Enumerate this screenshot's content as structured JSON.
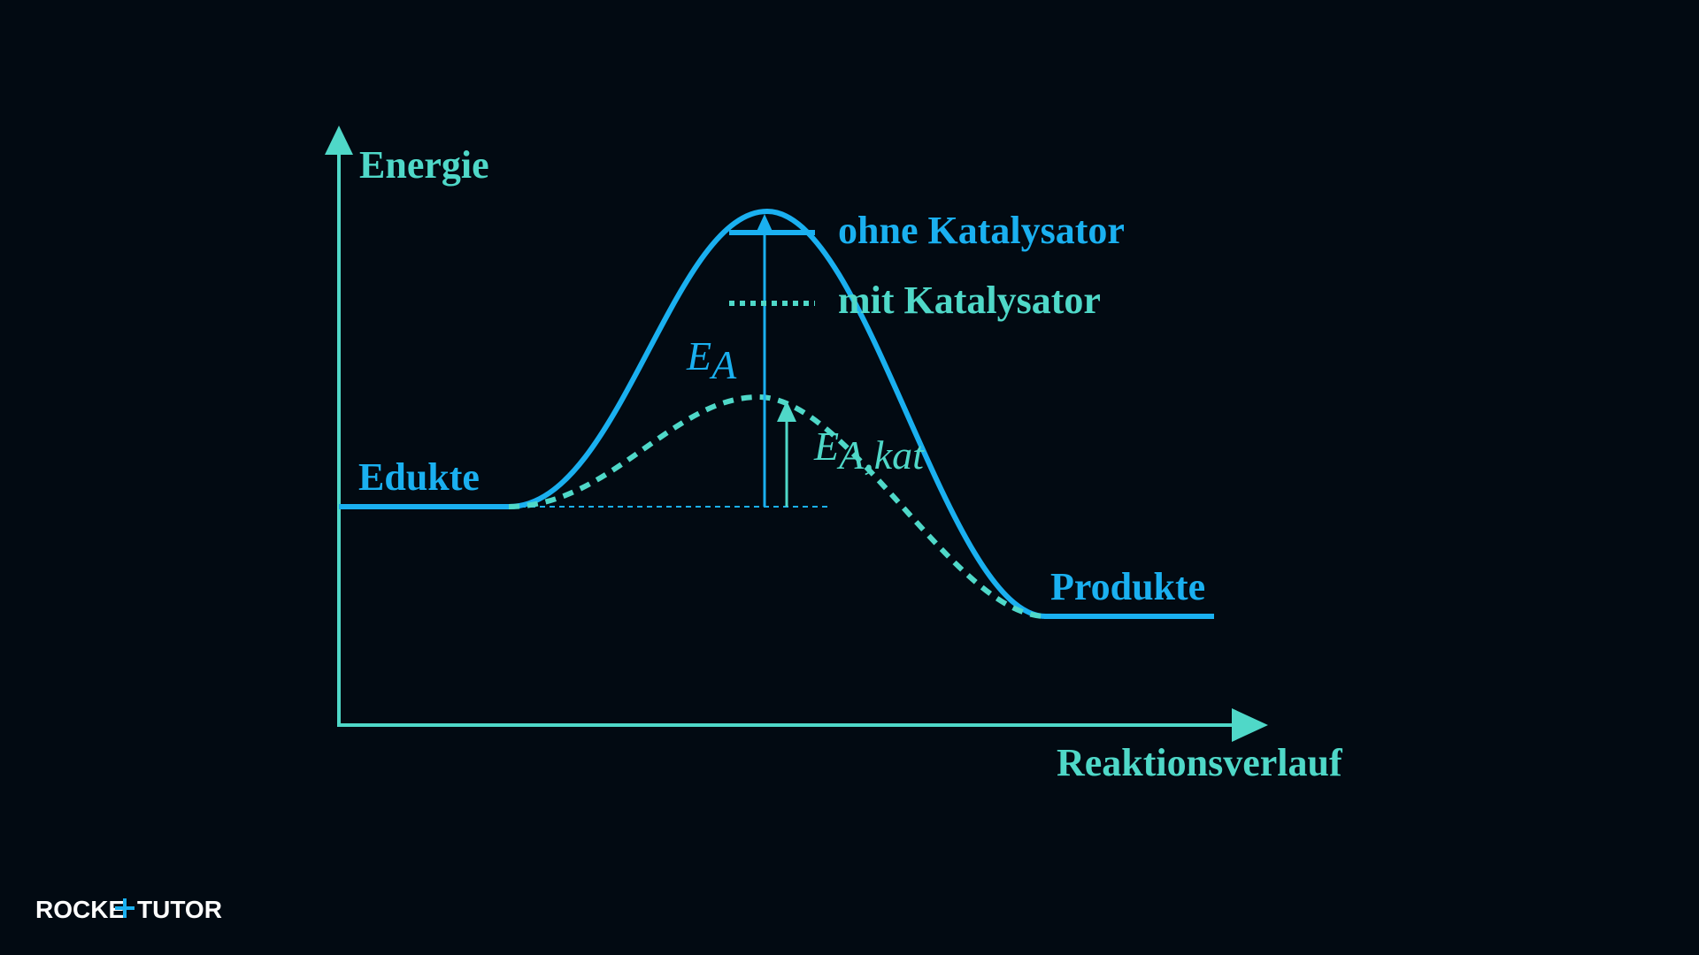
{
  "diagram": {
    "y_axis_label": "Energie",
    "x_axis_label": "Reaktionsverlauf",
    "start_label": "Edukte",
    "end_label": "Produkte",
    "legend": [
      "ohne Katalysator",
      "mit Katalysator"
    ],
    "ea": {
      "symbol": "E",
      "subscript": "A"
    },
    "ea_kat": {
      "symbol": "E",
      "subscript": "A,kat"
    }
  },
  "logo": {
    "left": "ROCKE",
    "right": "TUTOR"
  }
}
